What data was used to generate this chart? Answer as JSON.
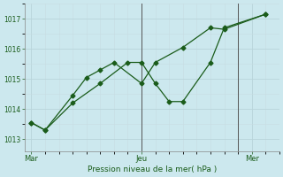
{
  "background_color": "#cce8ee",
  "grid_color_major": "#b8d4da",
  "grid_color_minor": "#c8dde2",
  "line_color": "#1a5c1a",
  "title": "Pression niveau de la mer( hPa )",
  "xlabel_ticks": [
    "Mar",
    "Jeu",
    "Mer"
  ],
  "xlabel_tick_x": [
    0,
    8,
    16
  ],
  "ylim": [
    1012.6,
    1017.5
  ],
  "yticks": [
    1013,
    1014,
    1015,
    1016,
    1017
  ],
  "xlim": [
    -0.5,
    18.0
  ],
  "line1_x": [
    0,
    1,
    3,
    4,
    5,
    6,
    8,
    9,
    11,
    13,
    14,
    17
  ],
  "line1_y": [
    1013.55,
    1013.3,
    1014.45,
    1015.05,
    1015.3,
    1015.55,
    1014.85,
    1015.55,
    1016.05,
    1016.7,
    1016.65,
    1017.15
  ],
  "line2_x": [
    0,
    1,
    3,
    5,
    7,
    8,
    9,
    10,
    11,
    13,
    14,
    17
  ],
  "line2_y": [
    1013.55,
    1013.3,
    1014.2,
    1014.85,
    1015.55,
    1015.55,
    1014.85,
    1014.25,
    1014.25,
    1015.55,
    1016.7,
    1017.15
  ],
  "vline_x": [
    8,
    15
  ],
  "figsize": [
    3.2,
    2.0
  ],
  "dpi": 100
}
